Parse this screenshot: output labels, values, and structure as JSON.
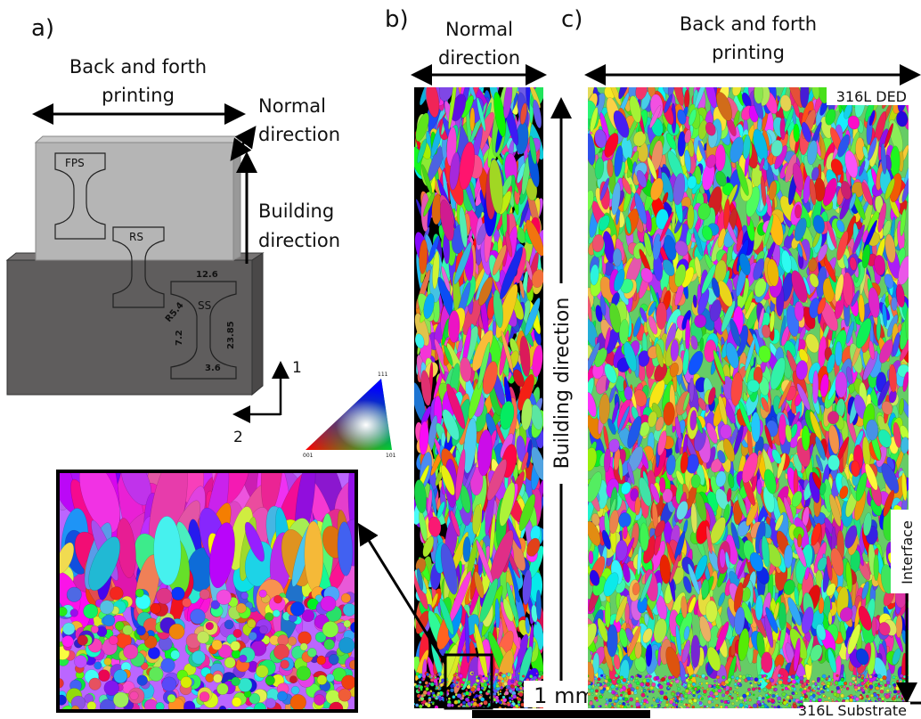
{
  "panel_a": {
    "label": "a)",
    "printing": [
      "Back and forth",
      "printing"
    ],
    "normal": [
      "Normal",
      "direction"
    ],
    "building": [
      "Building",
      "direction"
    ],
    "specimens": [
      "FPS",
      "RS",
      "SS"
    ],
    "dimensions": [
      "12.6",
      "R5.4",
      "7.2",
      "23.85",
      "3.6"
    ],
    "axes": [
      "1",
      "2"
    ],
    "ipf_corners": [
      "111",
      "001",
      "101"
    ]
  },
  "panel_b": {
    "label": "b)",
    "normal": [
      "Normal",
      "direction"
    ],
    "building": "Building direction",
    "scale": "1 mm"
  },
  "panel_c": {
    "label": "c)",
    "printing": [
      "Back and forth",
      "printing"
    ],
    "deposit": "316L DED",
    "interface": "Interface",
    "substrate": "316L Substrate"
  }
}
